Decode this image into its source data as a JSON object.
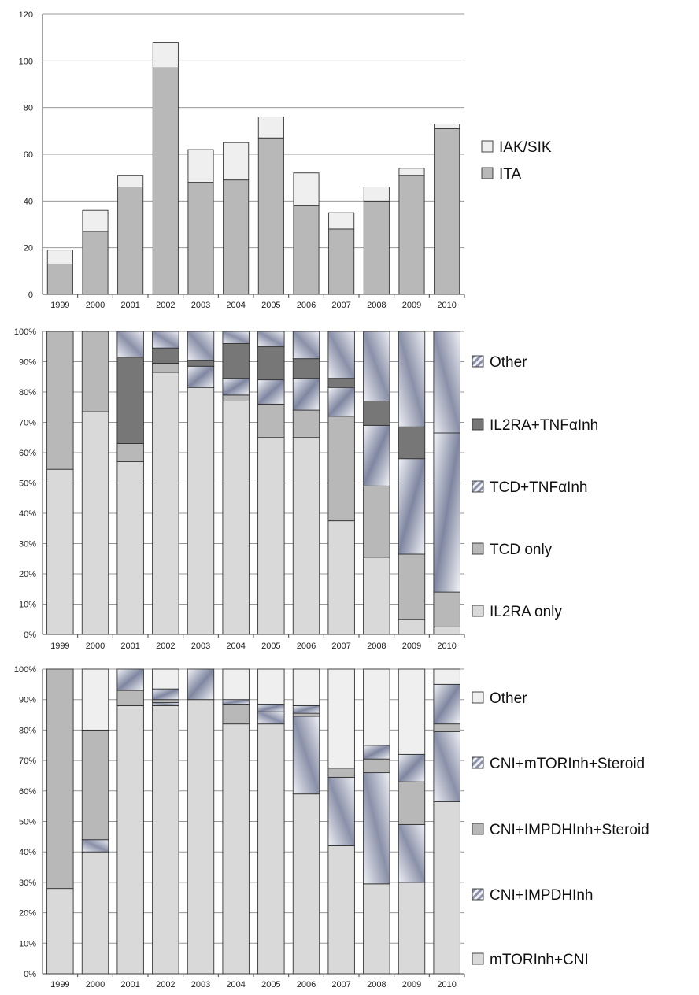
{
  "chart_data": [
    {
      "type": "bar",
      "stacked": true,
      "categories": [
        "1999",
        "2000",
        "2001",
        "2002",
        "2003",
        "2004",
        "2005",
        "2006",
        "2007",
        "2008",
        "2009",
        "2010"
      ],
      "ylim": [
        0,
        120
      ],
      "yticks": [
        "0",
        "20",
        "40",
        "60",
        "80",
        "100",
        "120"
      ],
      "grid": true,
      "legend_position": "right",
      "series": [
        {
          "name": "ITA",
          "color": "#b8b8b8",
          "values": [
            13,
            27,
            46,
            97,
            48,
            49,
            67,
            38,
            28,
            40,
            51,
            71
          ]
        },
        {
          "name": "IAK/SIK",
          "color": "#efefef",
          "values": [
            6,
            9,
            5,
            11,
            14,
            16,
            9,
            14,
            7,
            6,
            3,
            2
          ]
        }
      ],
      "legend_order": [
        "IAK/SIK",
        "ITA"
      ]
    },
    {
      "type": "bar",
      "stacked": true,
      "percent": true,
      "categories": [
        "1999",
        "2000",
        "2001",
        "2002",
        "2003",
        "2004",
        "2005",
        "2006",
        "2007",
        "2008",
        "2009",
        "2010"
      ],
      "ylim": [
        0,
        100
      ],
      "yticks": [
        "0%",
        "10%",
        "20%",
        "30%",
        "40%",
        "50%",
        "60%",
        "70%",
        "80%",
        "90%",
        "100%"
      ],
      "grid": true,
      "legend_position": "right",
      "series": [
        {
          "name": "IL2RA only",
          "color": "#d9d9d9",
          "values": [
            54.5,
            73.5,
            57,
            86.5,
            81.5,
            77,
            65,
            65,
            37.5,
            25.5,
            5,
            2.5
          ]
        },
        {
          "name": "TCD only",
          "color": "#b8b8b8",
          "values": [
            45.5,
            26.5,
            6,
            3,
            0,
            2,
            11,
            9,
            34.5,
            23.5,
            21.5,
            11.5
          ]
        },
        {
          "name": "TCD+TNFαInh",
          "color": "pattern-gradient",
          "values": [
            0,
            0,
            0,
            0,
            7,
            5.5,
            8,
            10.5,
            9.5,
            20,
            31.5,
            52.5
          ]
        },
        {
          "name": "IL2RA+TNFαInh",
          "color": "#777777",
          "values": [
            0,
            0,
            28.5,
            5,
            2,
            11.5,
            11,
            6.5,
            3,
            8,
            10.5,
            0
          ]
        },
        {
          "name": "Other",
          "color": "pattern-gradient",
          "values": [
            0,
            0,
            8.5,
            5.5,
            9.5,
            4,
            5,
            9,
            15.5,
            23,
            31.5,
            33.5
          ]
        }
      ],
      "legend_order": [
        "Other",
        "IL2RA+TNFαInh",
        "TCD+TNFαInh",
        "TCD only",
        "IL2RA only"
      ]
    },
    {
      "type": "bar",
      "stacked": true,
      "percent": true,
      "categories": [
        "1999",
        "2000",
        "2001",
        "2002",
        "2003",
        "2004",
        "2005",
        "2006",
        "2007",
        "2008",
        "2009",
        "2010"
      ],
      "ylim": [
        0,
        100
      ],
      "yticks": [
        "0%",
        "10%",
        "20%",
        "30%",
        "40%",
        "50%",
        "60%",
        "70%",
        "80%",
        "90%",
        "100%"
      ],
      "grid": true,
      "legend_position": "right",
      "series": [
        {
          "name": "mTORInh+CNI",
          "color": "#d9d9d9",
          "values": [
            28,
            40,
            88,
            88,
            90,
            82,
            82,
            59,
            42,
            29.5,
            30,
            56.5
          ]
        },
        {
          "name": "CNI+IMPDHInh",
          "color": "pattern-gradient",
          "values": [
            0,
            4,
            0,
            1,
            0,
            0,
            4,
            25.5,
            22.5,
            36.5,
            19,
            23
          ]
        },
        {
          "name": "CNI+IMPDHInh+Steroid",
          "color": "#b8b8b8",
          "values": [
            72,
            36,
            5,
            1,
            0,
            6.5,
            0,
            1,
            3,
            4.5,
            14,
            2.5
          ]
        },
        {
          "name": "CNI+mTORInh+Steroid",
          "color": "pattern-gradient",
          "values": [
            0,
            0,
            7,
            3.5,
            10,
            1.5,
            2.5,
            2.5,
            0,
            4.5,
            9,
            13
          ]
        },
        {
          "name": "Other",
          "color": "#efefef",
          "values": [
            0,
            20,
            0,
            6.5,
            0,
            10,
            11.5,
            12,
            32.5,
            25,
            28,
            5
          ]
        }
      ],
      "legend_order": [
        "Other",
        "CNI+mTORInh+Steroid",
        "CNI+IMPDHInh+Steroid",
        "CNI+IMPDHInh",
        "mTORInh+CNI"
      ]
    }
  ]
}
